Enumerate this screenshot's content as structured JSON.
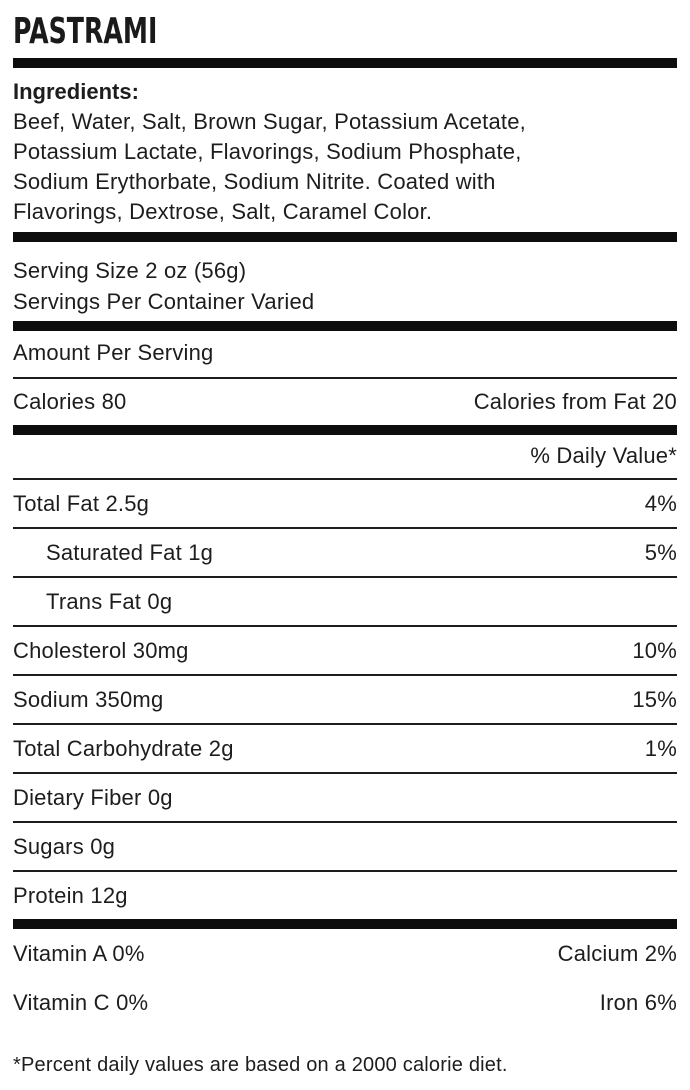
{
  "product": {
    "title": "PASTRAMI"
  },
  "ingredients": {
    "heading": "Ingredients:",
    "lines": [
      "Beef, Water, Salt, Brown Sugar, Potassium Acetate,",
      "Potassium Lactate, Flavorings, Sodium Phosphate,",
      "Sodium Erythorbate, Sodium Nitrite. Coated with",
      "Flavorings, Dextrose, Salt, Caramel Color."
    ]
  },
  "serving": {
    "size": "Serving Size 2 oz (56g)",
    "per_container": "Servings Per Container Varied"
  },
  "table": {
    "amount_per_serving": "Amount Per Serving",
    "calories": "Calories 80",
    "calories_from_fat": "Calories from Fat 20",
    "daily_value_header": "% Daily Value*"
  },
  "nutrients": [
    {
      "label": "Total Fat 2.5g",
      "daily_value": "4%"
    },
    {
      "label": "Saturated Fat 1g",
      "daily_value": "5%"
    },
    {
      "label": "Trans Fat 0g",
      "daily_value": ""
    },
    {
      "label": "Cholesterol 30mg",
      "daily_value": "10%"
    },
    {
      "label": "Sodium 350mg",
      "daily_value": "15%"
    },
    {
      "label": "Total Carbohydrate 2g",
      "daily_value": "1%"
    },
    {
      "label": "Dietary Fiber 0g",
      "daily_value": ""
    },
    {
      "label": "Sugars 0g",
      "daily_value": ""
    },
    {
      "label": "Protein 12g",
      "daily_value": ""
    }
  ],
  "micronutrients": [
    {
      "left": "Vitamin A 0%",
      "right": "Calcium 2%"
    },
    {
      "left": "Vitamin C 0%",
      "right": "Iron 6%"
    }
  ],
  "footnote": "*Percent daily values are based on a 2000 calorie diet.",
  "colors": {
    "text": "#1d1d1d",
    "rule": "#0d0d0d",
    "background": "#ffffff"
  }
}
